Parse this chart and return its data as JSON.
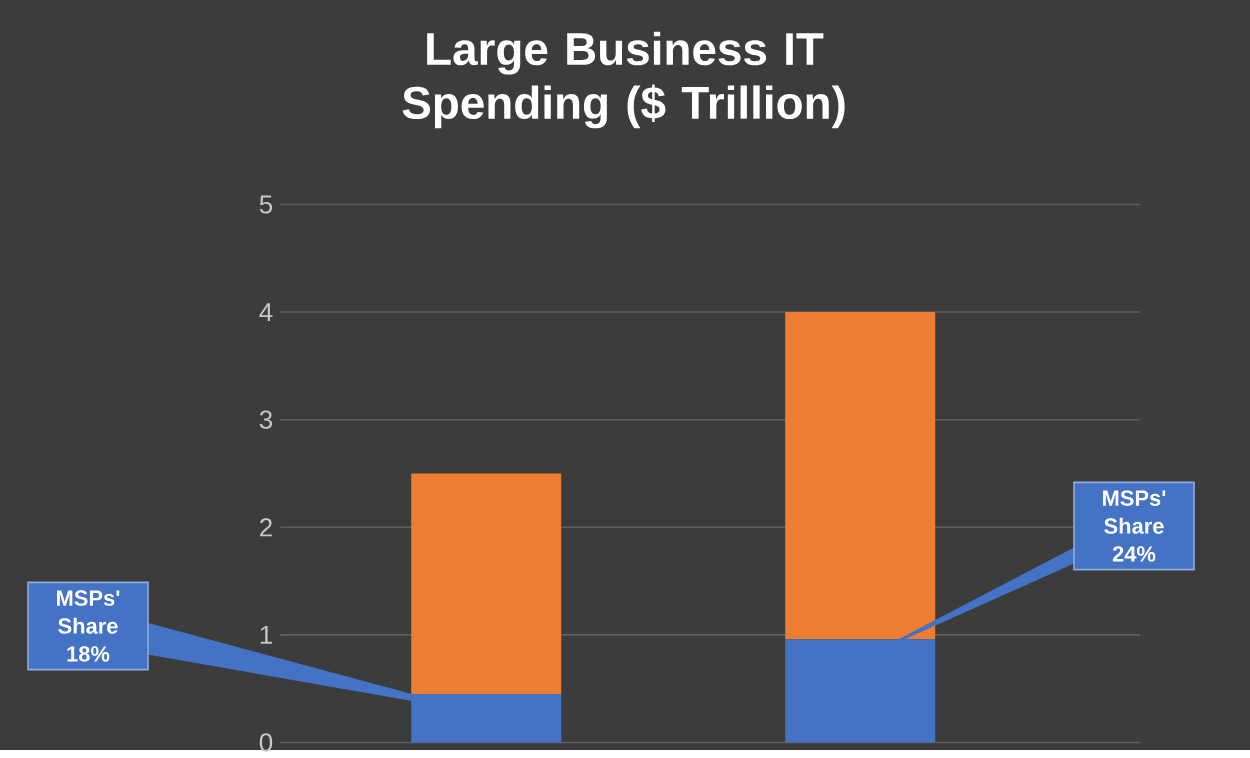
{
  "chart_data": {
    "type": "bar",
    "title": "Large Business IT Spending ($ Trillion)",
    "categories": [
      null,
      null
    ],
    "series": [
      {
        "color": "#4472c4",
        "values": [
          0.45,
          0.96
        ]
      },
      {
        "color": "#ed7d31",
        "values": [
          2.05,
          3.04
        ]
      }
    ],
    "stacked": true,
    "ylim": [
      0,
      5
    ],
    "yticks": [
      0,
      1,
      2,
      3,
      4,
      5
    ],
    "grid": "y",
    "tick_labels": "y",
    "annotations": [
      "MSPs' Share 18%",
      "MSPs' Share 24%"
    ]
  }
}
